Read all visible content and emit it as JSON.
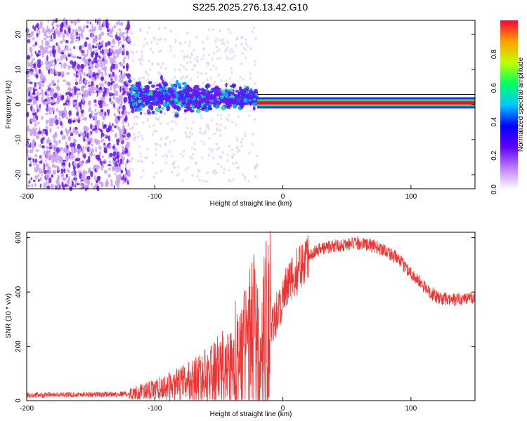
{
  "title": "S225.2025.276.13.42.G10",
  "chart_data": [
    {
      "type": "heatmap",
      "xlabel": "Height of straight line (km)",
      "ylabel": "Frequency (Hz)",
      "xlim": [
        -200,
        150
      ],
      "ylim": [
        -24,
        24
      ],
      "xticks": [
        -200,
        -100,
        0,
        100
      ],
      "yticks": [
        -20,
        -10,
        0,
        10,
        20
      ],
      "colorbar": {
        "label": "Normalized spectral amplitude",
        "range": [
          0.0,
          1.0
        ],
        "ticks": [
          "0.0",
          "0.2",
          "0.4",
          "0.6",
          "0.8"
        ],
        "colors": [
          "#ffffff",
          "#c080ff",
          "#6000ff",
          "#0000ff",
          "#00c8ff",
          "#00ff60",
          "#c0ff00",
          "#ffa000",
          "#ff0040"
        ]
      },
      "regions": [
        {
          "x_from": -200,
          "x_to": -120,
          "freq_spread_hz": 24,
          "amplitude": 0.1,
          "description_key": "noise"
        },
        {
          "x_from": -120,
          "x_to": -20,
          "freq_spread_hz": 7,
          "amplitude": 0.3
        },
        {
          "x_from": -20,
          "x_to": 150,
          "freq_center_hz": 0.5,
          "amplitude": 0.95
        }
      ]
    },
    {
      "type": "line",
      "xlabel": "Height of straight line (km)",
      "ylabel": "SNR (10 * v/v)",
      "xlim": [
        -200,
        150
      ],
      "ylim": [
        0,
        620
      ],
      "xticks": [
        -200,
        -100,
        0,
        100
      ],
      "yticks": [
        0,
        200,
        400,
        600
      ],
      "color": "#ee3333",
      "series": [
        {
          "name": "SNR",
          "x": [
            -200,
            -160,
            -120,
            -100,
            -80,
            -60,
            -40,
            -30,
            -22,
            -18,
            -15,
            -10,
            -5,
            0,
            10,
            20,
            30,
            40,
            50,
            60,
            70,
            80,
            90,
            100,
            110,
            120,
            130,
            140,
            150
          ],
          "y": [
            20,
            22,
            25,
            40,
            60,
            90,
            130,
            180,
            250,
            120,
            230,
            300,
            320,
            380,
            470,
            540,
            560,
            570,
            575,
            580,
            570,
            555,
            520,
            470,
            420,
            380,
            370,
            375,
            380
          ]
        }
      ]
    }
  ]
}
